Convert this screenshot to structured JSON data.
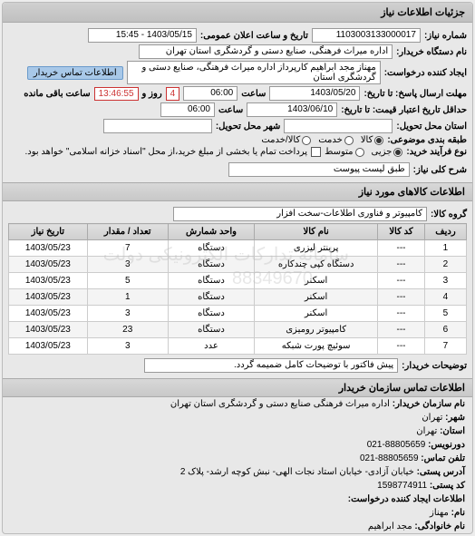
{
  "header": {
    "title": "جزئیات اطلاعات نیاز"
  },
  "req": {
    "number_lbl": "شماره نیاز:",
    "number": "1103003133000017",
    "date_lbl": "تاریخ و ساعت اعلان عمومی:",
    "date": "1403/05/15 - 15:45",
    "buyer_org_lbl": "نام دستگاه خریدار:",
    "buyer_org": "اداره میراث فرهنگی، صنایع دستی و گردشگری استان تهران",
    "creator_lbl": "ایجاد کننده درخواست:",
    "creator": "مهناز مجد ابراهیم کارپرداز اداره میراث فرهنگی، صنایع دستی و گردشگری استان",
    "contact_btn": "اطلاعات تماس خریدار",
    "deadline_lbl": "مهلت ارسال پاسخ: تا تاریخ:",
    "deadline_date": "1403/05/20",
    "at_lbl": "ساعت",
    "deadline_time": "06:00",
    "days_remain": "4",
    "days_lbl": "روز و",
    "time_remain": "13:46:55",
    "time_remain_lbl": "ساعت باقی مانده",
    "validity_lbl": "حداقل تاریخ اعتبار قیمت: تا تاریخ:",
    "validity_date": "1403/06/10",
    "validity_time": "06:00",
    "province_lbl": "استان محل تحویل:",
    "city_lbl": "شهر محل تحویل:",
    "cat_lbl": "طبقه بندی موضوعی:",
    "radios": {
      "goods": "کالا",
      "service": "خدمت",
      "both": "کالا/خدمت"
    },
    "process_lbl": "نوع فرآیند خرید:",
    "radios2": {
      "partial": "جزیی",
      "medium": "متوسط"
    },
    "note": "پرداخت تمام یا بخشی از مبلغ خرید،از محل \"اسناد خزانه اسلامی\" خواهد بود.",
    "summary_lbl": "شرح کلی نیاز:",
    "summary": "طبق لیست پیوست"
  },
  "items_section": {
    "title": "اطلاعات کالاهای مورد نیاز",
    "group_lbl": "گروه کالا:",
    "group": "کامپیوتر و فناوری اطلاعات-سخت افزار",
    "cols": [
      "ردیف",
      "کد کالا",
      "نام کالا",
      "واحد شمارش",
      "تعداد / مقدار",
      "تاریخ نیاز"
    ],
    "rows": [
      [
        "1",
        "---",
        "پرینتر لیزری",
        "دستگاه",
        "7",
        "1403/05/23"
      ],
      [
        "2",
        "---",
        "دستگاه کپی چندکاره",
        "دستگاه",
        "3",
        "1403/05/23"
      ],
      [
        "3",
        "---",
        "اسکنر",
        "دستگاه",
        "5",
        "1403/05/23"
      ],
      [
        "4",
        "---",
        "اسکنر",
        "دستگاه",
        "1",
        "1403/05/23"
      ],
      [
        "5",
        "---",
        "اسکنر",
        "دستگاه",
        "3",
        "1403/05/23"
      ],
      [
        "6",
        "---",
        "کامپیوتر رومیزی",
        "دستگاه",
        "23",
        "1403/05/23"
      ],
      [
        "7",
        "---",
        "سوئیچ پورت شبکه",
        "عدد",
        "3",
        "1403/05/23"
      ]
    ],
    "buyer_notes_lbl": "توضیحات خریدار:",
    "buyer_notes": "پیش فاکتور با توضیحات کامل ضمیمه گردد."
  },
  "contact": {
    "title": "اطلاعات تماس سازمان خریدار",
    "org_lbl": "نام سازمان خریدار:",
    "org": "اداره میراث فرهنگی صنایع دستی و گردشگری استان تهران",
    "city_lbl": "شهر:",
    "city": "تهران",
    "province_lbl": "استان:",
    "province": "تهران",
    "fax_lbl": "دورنویس:",
    "fax": "88805659-021",
    "phone_lbl": "تلفن تماس:",
    "phone": "88805659-021",
    "addr_lbl": "آدرس پستی:",
    "addr": "خیابان آزادی- خیابان استاد نجات الهی- نبش کوچه ارشد- پلاک 2",
    "zip_lbl": "کد پستی:",
    "zip": "1598774911",
    "creator_title": "اطلاعات ایجاد کننده درخواست:",
    "name_lbl": "نام:",
    "name": "مهناز",
    "lname_lbl": "نام خانوادگی:",
    "lname": "مجد ابراهیم"
  },
  "wm": {
    "a": "سامانه تدارکات الکترونیکی دولت",
    "b": "88349670"
  }
}
